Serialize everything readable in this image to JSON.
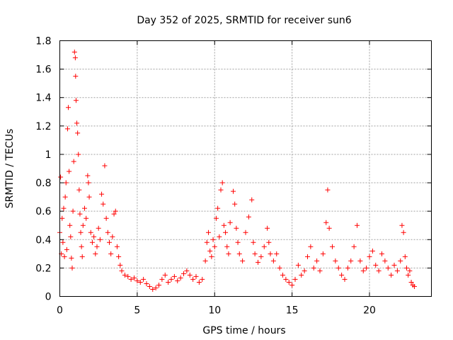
{
  "chart_data": {
    "type": "scatter",
    "title": "Day 352 of 2025, SRMTID for receiver sun6",
    "xlabel": "GPS time / hours",
    "ylabel": "SRMTID / TECUs",
    "xlim": [
      0,
      24
    ],
    "ylim": [
      0,
      1.8
    ],
    "x_ticks": [
      0,
      5,
      10,
      15,
      20
    ],
    "y_ticks": [
      0,
      0.2,
      0.4,
      0.6,
      0.8,
      1,
      1.2,
      1.4,
      1.6,
      1.8
    ],
    "grid": true,
    "marker": "+",
    "color": "#ff0000",
    "series": [
      {
        "name": "SRMTID",
        "points": [
          [
            0.0,
            0.45
          ],
          [
            0.05,
            0.84
          ],
          [
            0.1,
            0.3
          ],
          [
            0.15,
            0.55
          ],
          [
            0.2,
            0.38
          ],
          [
            0.25,
            0.62
          ],
          [
            0.3,
            0.28
          ],
          [
            0.35,
            0.7
          ],
          [
            0.4,
            0.8
          ],
          [
            0.45,
            0.33
          ],
          [
            0.5,
            1.18
          ],
          [
            0.55,
            1.33
          ],
          [
            0.6,
            0.88
          ],
          [
            0.65,
            0.5
          ],
          [
            0.7,
            0.42
          ],
          [
            0.75,
            0.27
          ],
          [
            0.8,
            0.2
          ],
          [
            0.85,
            0.6
          ],
          [
            0.9,
            0.95
          ],
          [
            0.95,
            1.72
          ],
          [
            1.0,
            1.68
          ],
          [
            1.02,
            1.55
          ],
          [
            1.05,
            1.38
          ],
          [
            1.1,
            1.22
          ],
          [
            1.15,
            1.15
          ],
          [
            1.2,
            1.0
          ],
          [
            1.25,
            0.75
          ],
          [
            1.3,
            0.58
          ],
          [
            1.35,
            0.45
          ],
          [
            1.4,
            0.35
          ],
          [
            1.45,
            0.28
          ],
          [
            1.5,
            0.5
          ],
          [
            1.6,
            0.62
          ],
          [
            1.7,
            0.55
          ],
          [
            1.8,
            0.85
          ],
          [
            1.85,
            0.8
          ],
          [
            1.9,
            0.7
          ],
          [
            2.0,
            0.45
          ],
          [
            2.1,
            0.38
          ],
          [
            2.2,
            0.42
          ],
          [
            2.3,
            0.3
          ],
          [
            2.4,
            0.35
          ],
          [
            2.5,
            0.48
          ],
          [
            2.6,
            0.4
          ],
          [
            2.7,
            0.72
          ],
          [
            2.8,
            0.65
          ],
          [
            2.9,
            0.92
          ],
          [
            3.0,
            0.55
          ],
          [
            3.1,
            0.45
          ],
          [
            3.2,
            0.38
          ],
          [
            3.3,
            0.3
          ],
          [
            3.4,
            0.42
          ],
          [
            3.5,
            0.58
          ],
          [
            3.6,
            0.6
          ],
          [
            3.7,
            0.35
          ],
          [
            3.8,
            0.28
          ],
          [
            3.9,
            0.22
          ],
          [
            4.0,
            0.18
          ],
          [
            4.2,
            0.15
          ],
          [
            4.4,
            0.14
          ],
          [
            4.6,
            0.12
          ],
          [
            4.8,
            0.13
          ],
          [
            5.0,
            0.11
          ],
          [
            5.2,
            0.1
          ],
          [
            5.4,
            0.12
          ],
          [
            5.6,
            0.09
          ],
          [
            5.8,
            0.07
          ],
          [
            6.0,
            0.05
          ],
          [
            6.2,
            0.06
          ],
          [
            6.4,
            0.08
          ],
          [
            6.6,
            0.12
          ],
          [
            6.8,
            0.15
          ],
          [
            7.0,
            0.1
          ],
          [
            7.2,
            0.12
          ],
          [
            7.4,
            0.14
          ],
          [
            7.6,
            0.11
          ],
          [
            7.8,
            0.13
          ],
          [
            8.0,
            0.16
          ],
          [
            8.2,
            0.18
          ],
          [
            8.4,
            0.15
          ],
          [
            8.6,
            0.12
          ],
          [
            8.8,
            0.14
          ],
          [
            9.0,
            0.1
          ],
          [
            9.2,
            0.12
          ],
          [
            9.4,
            0.25
          ],
          [
            9.5,
            0.38
          ],
          [
            9.6,
            0.45
          ],
          [
            9.7,
            0.32
          ],
          [
            9.8,
            0.28
          ],
          [
            9.9,
            0.4
          ],
          [
            10.0,
            0.35
          ],
          [
            10.1,
            0.55
          ],
          [
            10.2,
            0.62
          ],
          [
            10.3,
            0.42
          ],
          [
            10.4,
            0.75
          ],
          [
            10.5,
            0.8
          ],
          [
            10.6,
            0.5
          ],
          [
            10.7,
            0.45
          ],
          [
            10.8,
            0.35
          ],
          [
            10.9,
            0.3
          ],
          [
            11.0,
            0.52
          ],
          [
            11.2,
            0.74
          ],
          [
            11.3,
            0.65
          ],
          [
            11.4,
            0.48
          ],
          [
            11.5,
            0.38
          ],
          [
            11.6,
            0.3
          ],
          [
            11.8,
            0.25
          ],
          [
            12.0,
            0.45
          ],
          [
            12.2,
            0.56
          ],
          [
            12.4,
            0.68
          ],
          [
            12.5,
            0.38
          ],
          [
            12.6,
            0.3
          ],
          [
            12.8,
            0.24
          ],
          [
            13.0,
            0.28
          ],
          [
            13.2,
            0.35
          ],
          [
            13.4,
            0.48
          ],
          [
            13.5,
            0.38
          ],
          [
            13.6,
            0.3
          ],
          [
            13.8,
            0.25
          ],
          [
            14.0,
            0.3
          ],
          [
            14.2,
            0.2
          ],
          [
            14.4,
            0.15
          ],
          [
            14.6,
            0.12
          ],
          [
            14.8,
            0.1
          ],
          [
            15.0,
            0.08
          ],
          [
            15.2,
            0.12
          ],
          [
            15.4,
            0.22
          ],
          [
            15.6,
            0.15
          ],
          [
            15.8,
            0.18
          ],
          [
            16.0,
            0.28
          ],
          [
            16.2,
            0.35
          ],
          [
            16.4,
            0.2
          ],
          [
            16.6,
            0.25
          ],
          [
            16.8,
            0.18
          ],
          [
            17.0,
            0.3
          ],
          [
            17.2,
            0.52
          ],
          [
            17.3,
            0.75
          ],
          [
            17.4,
            0.48
          ],
          [
            17.6,
            0.35
          ],
          [
            17.8,
            0.25
          ],
          [
            18.0,
            0.2
          ],
          [
            18.2,
            0.15
          ],
          [
            18.4,
            0.12
          ],
          [
            18.6,
            0.2
          ],
          [
            18.8,
            0.25
          ],
          [
            19.0,
            0.35
          ],
          [
            19.2,
            0.5
          ],
          [
            19.4,
            0.25
          ],
          [
            19.6,
            0.18
          ],
          [
            19.8,
            0.2
          ],
          [
            20.0,
            0.28
          ],
          [
            20.2,
            0.32
          ],
          [
            20.4,
            0.22
          ],
          [
            20.6,
            0.18
          ],
          [
            20.8,
            0.3
          ],
          [
            21.0,
            0.25
          ],
          [
            21.2,
            0.2
          ],
          [
            21.4,
            0.15
          ],
          [
            21.6,
            0.22
          ],
          [
            21.8,
            0.18
          ],
          [
            22.0,
            0.25
          ],
          [
            22.1,
            0.5
          ],
          [
            22.2,
            0.45
          ],
          [
            22.3,
            0.28
          ],
          [
            22.4,
            0.2
          ],
          [
            22.5,
            0.15
          ],
          [
            22.6,
            0.18
          ],
          [
            22.7,
            0.1
          ],
          [
            22.8,
            0.08
          ],
          [
            22.9,
            0.07
          ]
        ]
      }
    ]
  }
}
